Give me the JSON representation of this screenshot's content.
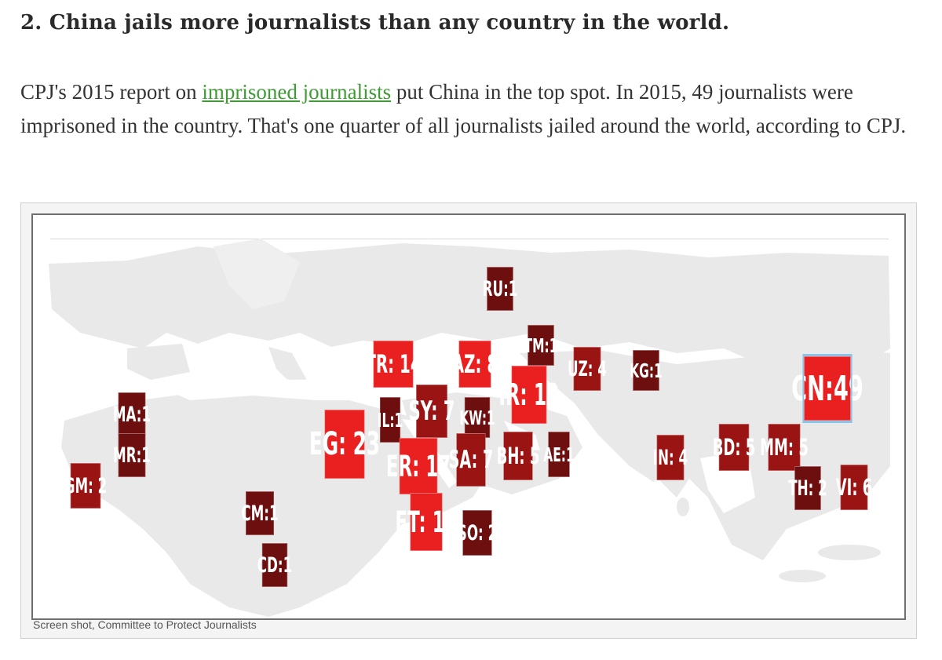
{
  "article": {
    "heading": "2. China jails more journalists than any country in the world.",
    "para_before_link": "CPJ's 2015 report on ",
    "link_text": "imprisoned journalists",
    "para_after_link": " put China in the top spot. In 2015, 49 journalists were imprisoned in the country. That's one quarter of all journalists jailed around the world, according to CPJ."
  },
  "figure": {
    "caption": "Screen shot, Committee to Protect Journalists",
    "colors": {
      "high": "#ea1f1f",
      "medium": "#9a1414",
      "low": "#6e0f0f",
      "map_land": "#e9e9e9"
    },
    "labels": [
      {
        "id": "ru",
        "text": "RU:1",
        "level": "low"
      },
      {
        "id": "tm",
        "text": "TM:1",
        "level": "low"
      },
      {
        "id": "tr",
        "text": "TR: 14",
        "level": "high"
      },
      {
        "id": "az",
        "text": "AZ: 8",
        "level": "high"
      },
      {
        "id": "uz",
        "text": "UZ: 4",
        "level": "medium"
      },
      {
        "id": "kg",
        "text": "KG:1",
        "level": "low"
      },
      {
        "id": "cn",
        "text": "CN:49",
        "level": "high"
      },
      {
        "id": "ir",
        "text": "IR: 19",
        "level": "high"
      },
      {
        "id": "ma",
        "text": "MA:1",
        "level": "low"
      },
      {
        "id": "il",
        "text": "IL:1",
        "level": "low"
      },
      {
        "id": "sy",
        "text": "SY: 7",
        "level": "medium"
      },
      {
        "id": "kw",
        "text": "KW:1",
        "level": "low"
      },
      {
        "id": "eg",
        "text": "EG: 23",
        "level": "high"
      },
      {
        "id": "bh",
        "text": "BH: 5",
        "level": "medium"
      },
      {
        "id": "ae",
        "text": "AE:1",
        "level": "low"
      },
      {
        "id": "sa",
        "text": "SA: 7",
        "level": "medium"
      },
      {
        "id": "er",
        "text": "ER: 17",
        "level": "high"
      },
      {
        "id": "mr",
        "text": "MR:1",
        "level": "low"
      },
      {
        "id": "in",
        "text": "IN: 4",
        "level": "medium"
      },
      {
        "id": "bd",
        "text": "BD: 5",
        "level": "medium"
      },
      {
        "id": "mm",
        "text": "MM: 5",
        "level": "medium"
      },
      {
        "id": "gm",
        "text": "GM: 2",
        "level": "medium"
      },
      {
        "id": "th",
        "text": "TH: 2",
        "level": "low"
      },
      {
        "id": "vi",
        "text": "VI: 6",
        "level": "medium"
      },
      {
        "id": "cm",
        "text": "CM:1",
        "level": "low"
      },
      {
        "id": "et",
        "text": "ET: 10",
        "level": "high"
      },
      {
        "id": "so",
        "text": "SO: 2",
        "level": "low"
      },
      {
        "id": "cd",
        "text": "CD:1",
        "level": "low"
      }
    ]
  }
}
